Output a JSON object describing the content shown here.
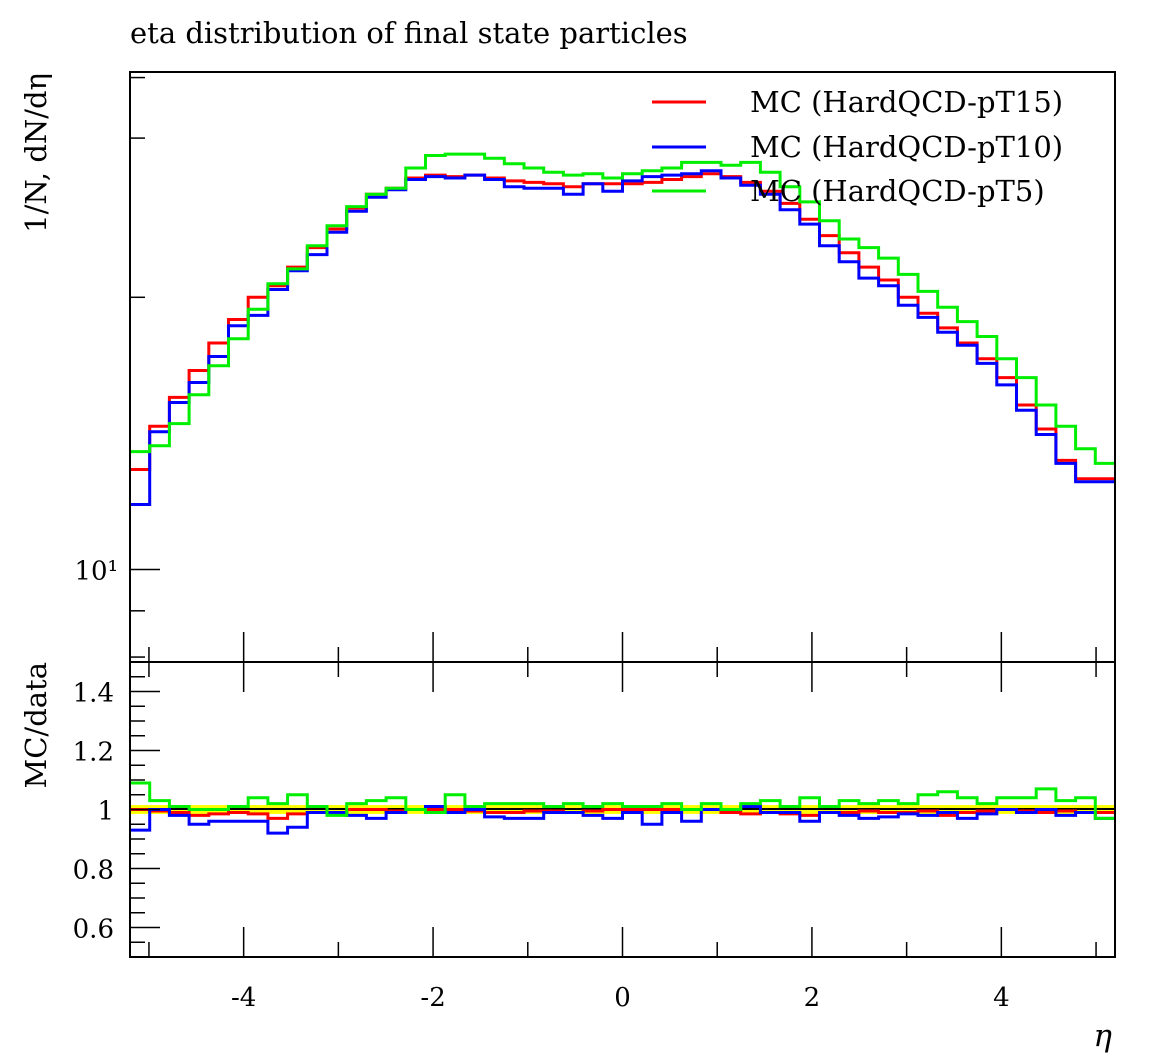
{
  "chart_data": {
    "type": "line",
    "title": "eta distribution of final state particles",
    "xlabel": "η",
    "main": {
      "ylabel": "1/N, dN/dη",
      "yscale": "log",
      "ylim": [
        7.9,
        35.5
      ],
      "ytick_major_label": "10¹"
    },
    "ratio": {
      "ylabel": "MC/data",
      "ylim": [
        0.5,
        1.5
      ],
      "yticks": [
        "0.6",
        "0.8",
        "1",
        "1.2",
        "1.4"
      ]
    },
    "xlim": [
      -5.2,
      5.2
    ],
    "xticks": [
      "-4",
      "-2",
      "0",
      "2",
      "4"
    ],
    "bin_width": 0.2,
    "legend_position": "top-right",
    "band": {
      "color": "#ffff00",
      "lo": 0.985,
      "hi": 1.015
    },
    "series": [
      {
        "name": "MC (HardQCD-pT15)",
        "color": "#ff0000",
        "y": [
          12.9,
          14.4,
          15.5,
          16.6,
          17.8,
          18.9,
          20.0,
          20.6,
          21.6,
          22.7,
          23.8,
          25.1,
          26.0,
          26.4,
          27.1,
          27.3,
          27.2,
          27.3,
          27.1,
          26.9,
          26.8,
          26.7,
          26.5,
          26.7,
          26.7,
          26.7,
          26.8,
          27.0,
          27.2,
          27.4,
          27.2,
          26.8,
          26.2,
          25.4,
          24.4,
          23.4,
          22.4,
          21.6,
          20.9,
          20.0,
          19.2,
          18.5,
          17.8,
          17.1,
          16.3,
          15.2,
          14.3,
          13.2,
          12.6,
          12.6
        ],
        "ratio": [
          1.0,
          0.995,
          0.99,
          0.98,
          0.985,
          0.99,
          0.985,
          0.97,
          0.985,
          0.99,
          0.99,
          1.0,
          1.0,
          0.995,
          1.0,
          1.0,
          1.0,
          0.995,
          0.99,
          0.99,
          0.995,
          0.995,
          0.99,
          0.995,
          1.0,
          1.0,
          1.0,
          1.0,
          1.0,
          1.0,
          0.99,
          0.985,
          0.99,
          0.985,
          0.98,
          0.99,
          0.99,
          0.995,
          0.99,
          0.99,
          0.995,
          0.98,
          0.99,
          0.995,
          1.0,
          0.995,
          0.99,
          0.995,
          0.99,
          0.99
        ]
      },
      {
        "name": "MC (HardQCD-pT10)",
        "color": "#0000ff",
        "y": [
          11.8,
          14.2,
          15.3,
          16.1,
          17.2,
          18.6,
          19.1,
          20.4,
          21.4,
          22.3,
          23.6,
          24.9,
          25.8,
          26.3,
          27.0,
          27.2,
          27.1,
          27.3,
          27.0,
          26.5,
          26.4,
          26.4,
          26.0,
          26.7,
          26.2,
          26.9,
          27.2,
          27.3,
          27.4,
          27.6,
          27.1,
          26.6,
          26.0,
          25.0,
          24.1,
          22.8,
          21.9,
          21.0,
          20.6,
          19.6,
          19.0,
          18.3,
          17.7,
          16.9,
          16.0,
          15.0,
          14.1,
          13.1,
          12.5,
          12.5
        ],
        "ratio": [
          0.93,
          1.0,
          0.98,
          0.95,
          0.96,
          0.96,
          0.96,
          0.92,
          0.94,
          0.99,
          0.99,
          0.98,
          0.97,
          0.99,
          1.0,
          1.01,
          0.99,
          1.0,
          0.975,
          0.97,
          0.97,
          0.99,
          0.99,
          0.98,
          0.97,
          0.99,
          0.95,
          0.99,
          0.96,
          1.0,
          1.0,
          1.01,
          0.99,
          0.99,
          0.96,
          0.99,
          0.98,
          0.97,
          0.975,
          0.985,
          0.98,
          0.99,
          0.97,
          0.985,
          1.0,
          0.99,
          1.0,
          0.98,
          0.99,
          0.97
        ]
      },
      {
        "name": "MC (HardQCD-pT5)",
        "color": "#00ee00",
        "y": [
          13.5,
          13.7,
          14.5,
          15.6,
          16.8,
          18.0,
          19.4,
          20.7,
          21.5,
          22.8,
          24.0,
          25.2,
          26.0,
          26.4,
          27.8,
          28.7,
          28.8,
          28.8,
          28.5,
          28.1,
          27.8,
          27.5,
          27.3,
          27.4,
          27.1,
          27.4,
          27.6,
          27.8,
          28.2,
          28.2,
          28.0,
          28.2,
          27.5,
          26.5,
          25.5,
          24.3,
          23.2,
          22.7,
          22.1,
          21.2,
          20.3,
          19.5,
          18.8,
          18.1,
          17.1,
          16.3,
          15.2,
          14.4,
          13.6,
          13.1
        ],
        "ratio": [
          1.09,
          1.03,
          1.01,
          1.0,
          1.0,
          1.01,
          1.04,
          1.02,
          1.05,
          1.01,
          0.98,
          1.02,
          1.03,
          1.04,
          1.0,
          0.99,
          1.05,
          1.01,
          1.02,
          1.02,
          1.02,
          1.01,
          1.02,
          1.01,
          1.02,
          1.01,
          1.01,
          1.02,
          1.0,
          1.02,
          1.0,
          1.02,
          1.03,
          1.01,
          1.04,
          1.01,
          1.03,
          1.02,
          1.03,
          1.02,
          1.05,
          1.06,
          1.04,
          1.02,
          1.04,
          1.04,
          1.07,
          1.03,
          1.04,
          0.97
        ]
      }
    ]
  }
}
